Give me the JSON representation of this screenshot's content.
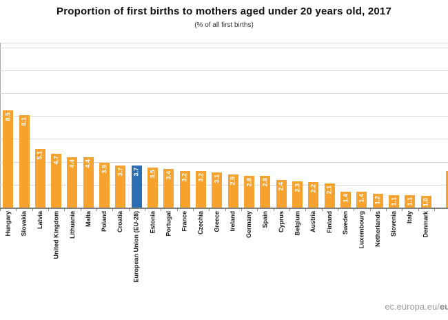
{
  "header": {
    "title": "Proportion of first births to mothers aged under 20 years old, 2017",
    "subtitle": "(% of all first births)"
  },
  "watermark": {
    "prefix": "ec.europa.eu/",
    "bold_suffix": "eu"
  },
  "chart_data": {
    "type": "bar",
    "title": "Proportion of first births to mothers aged under 20 years old, 2017",
    "subtitle": "(% of all first births)",
    "categories": [
      "Hungary",
      "Slovakia",
      "Latvia",
      "United Kingdom",
      "Lithuania",
      "Malta",
      "Poland",
      "Croatia",
      "European Union (EU-28)",
      "Estonia",
      "Portugal",
      "France",
      "Czechia",
      "Greece",
      "Ireland",
      "Germany",
      "Spain",
      "Cyprus",
      "Belgium",
      "Austria",
      "Finland",
      "Sweden",
      "Luxembourg",
      "Netherlands",
      "Slovenia",
      "Italy",
      "Denmark"
    ],
    "values": [
      8.5,
      8.1,
      5.1,
      4.7,
      4.4,
      4.4,
      3.9,
      3.7,
      3.7,
      3.5,
      3.4,
      3.2,
      3.2,
      3.1,
      2.9,
      2.8,
      2.8,
      2.4,
      2.3,
      2.2,
      2.1,
      1.4,
      1.4,
      1.2,
      1.1,
      1.1,
      1.0
    ],
    "highlight_index": 8,
    "value_label_format": "one_decimal",
    "value_labels_rotated_vertical": true,
    "category_labels_rotated_vertical": true,
    "colors": {
      "bar": "#F6A22E",
      "highlight": "#2A6EB4",
      "value_label": "#FFFFFF",
      "grid": "#D9D9D9",
      "axis": "#808080"
    },
    "ylim": [
      0,
      14.4
    ],
    "gridline_step": 2,
    "grid": true,
    "legend": "none",
    "y_axis_tick_labels_visible": false,
    "partial_bar_cut_at_right_edge": {
      "present": true,
      "approx_value": 3.2
    }
  }
}
